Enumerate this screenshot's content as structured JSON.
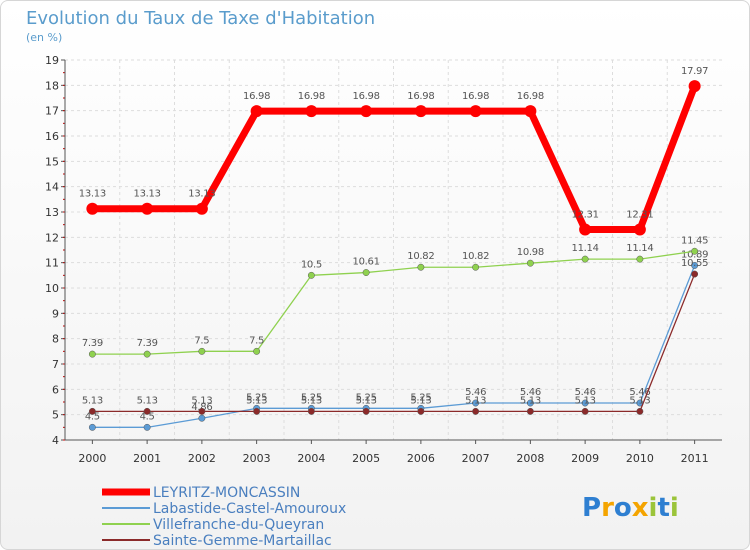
{
  "chart_data": {
    "type": "line",
    "title": "Evolution du Taux de Taxe d'Habitation",
    "subtitle": "(en %)",
    "xlabel": "",
    "ylabel": "",
    "categories": [
      "2000",
      "2001",
      "2002",
      "2003",
      "2004",
      "2005",
      "2006",
      "2007",
      "2008",
      "2009",
      "2010",
      "2011"
    ],
    "ylim": [
      4,
      19
    ],
    "yticks": [
      4,
      5,
      6,
      7,
      8,
      9,
      10,
      11,
      12,
      13,
      14,
      15,
      16,
      17,
      18,
      19
    ],
    "grid": true,
    "legend_position": "bottom-left",
    "series": [
      {
        "name": "LEYRITZ-MONCASSIN",
        "color": "#ff0000",
        "values": [
          13.13,
          13.13,
          13.13,
          16.98,
          16.98,
          16.98,
          16.98,
          16.98,
          16.98,
          12.31,
          12.31,
          17.97
        ],
        "labels": [
          "13.13",
          "13.13",
          "13.13",
          "16.98",
          "16.98",
          "16.98",
          "16.98",
          "16.98",
          "16.98",
          "12.31",
          "12.31",
          "17.97"
        ]
      },
      {
        "name": "Labastide-Castel-Amouroux",
        "color": "#5b9bd5",
        "values": [
          4.5,
          4.5,
          4.86,
          5.25,
          5.25,
          5.25,
          5.25,
          5.46,
          5.46,
          5.46,
          5.46,
          10.89
        ],
        "labels": [
          "4.5",
          "4.5",
          "4.86",
          "5.25",
          "5.25",
          "5.25",
          "5.25",
          "5.46",
          "5.46",
          "5.46",
          "5.46",
          "10.89"
        ]
      },
      {
        "name": "Villefranche-du-Queyran",
        "color": "#8fd14f",
        "values": [
          7.39,
          7.39,
          7.5,
          7.5,
          10.5,
          10.61,
          10.82,
          10.82,
          10.98,
          11.14,
          11.14,
          11.45
        ],
        "labels": [
          "7.39",
          "7.39",
          "7.5",
          "7.5",
          "10.5",
          "10.61",
          "10.82",
          "10.82",
          "10.98",
          "11.14",
          "11.14",
          "11.45"
        ]
      },
      {
        "name": "Sainte-Gemme-Martaillac",
        "color": "#8b2a2a",
        "values": [
          5.13,
          5.13,
          5.13,
          5.13,
          5.13,
          5.13,
          5.13,
          5.13,
          5.13,
          5.13,
          5.13,
          10.55
        ],
        "labels": [
          "5.13",
          "5.13",
          "5.13",
          "5.13",
          "5.13",
          "5.13",
          "5.13",
          "5.13",
          "5.13",
          "5.13",
          "5.13",
          "10.55"
        ]
      }
    ]
  },
  "logo": {
    "letters": [
      "P",
      "r",
      "o",
      "x",
      "i",
      "t",
      "i"
    ],
    "colors": [
      "#2e7fd1",
      "#f4a400",
      "#2e7fd1",
      "#f4a400",
      "#9bc43a",
      "#2e7fd1",
      "#9bc43a"
    ]
  }
}
